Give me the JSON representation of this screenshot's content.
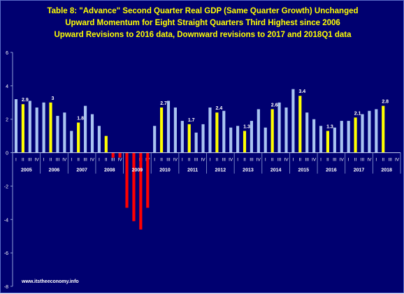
{
  "chart_data": {
    "type": "bar",
    "title_lines": [
      "Table 8: \"Advance\" Second Quarter Real GDP (Same Quarter Growth) Unchanged",
      "Upward Momentum for Eight  Straight Quarters Third Highest since 2006",
      "Upward Revisions to 2016 data, Downward revisions to 2017 and 2018Q1 data"
    ],
    "years": [
      "2005",
      "2006",
      "2007",
      "2008",
      "2009",
      "2010",
      "2011",
      "2012",
      "2013",
      "2014",
      "2015",
      "2016",
      "2017",
      "2018"
    ],
    "quarter_labels": [
      "I",
      "II",
      "III",
      "IV"
    ],
    "values": [
      3.2,
      2.9,
      3.1,
      2.7,
      3.0,
      3.0,
      2.2,
      2.4,
      1.3,
      1.8,
      2.8,
      2.3,
      1.6,
      1.0,
      -0.3,
      -0.3,
      -3.3,
      -4.1,
      -4.6,
      -3.3,
      1.6,
      2.7,
      3.1,
      2.7,
      1.9,
      1.7,
      1.2,
      1.7,
      2.7,
      2.4,
      2.5,
      1.5,
      1.6,
      1.3,
      1.9,
      2.6,
      1.5,
      2.6,
      3.0,
      2.7,
      3.8,
      3.4,
      2.4,
      2.0,
      1.6,
      1.3,
      1.5,
      1.9,
      1.9,
      2.1,
      2.3,
      2.5,
      2.6,
      2.8,
      null,
      null
    ],
    "data_labels": [
      {
        "index": 1,
        "text": "2.9"
      },
      {
        "index": 5,
        "text": "3"
      },
      {
        "index": 9,
        "text": "1.8"
      },
      {
        "index": 21,
        "text": "2.7"
      },
      {
        "index": 25,
        "text": "1.7"
      },
      {
        "index": 29,
        "text": "2.4"
      },
      {
        "index": 33,
        "text": "1.3"
      },
      {
        "index": 37,
        "text": "2.6"
      },
      {
        "index": 41,
        "text": "3.4"
      },
      {
        "index": 45,
        "text": "1.3"
      },
      {
        "index": 49,
        "text": "2.1"
      },
      {
        "index": 53,
        "text": "2.8"
      }
    ],
    "y_ticks": [
      "6",
      "4",
      "2",
      "0",
      "-2",
      "-4",
      "-6",
      "-8"
    ],
    "ylim": [
      -8,
      6
    ],
    "grid": false,
    "colors": {
      "background": "#000070",
      "bar_default": "#a9c4f1",
      "bar_second_quarter": "#ffff00",
      "bar_negative": "#ff0000",
      "title": "#ffff00",
      "axis_text": "#ffffff",
      "year_text": "#ffffff"
    }
  },
  "footer": "www.itstheeconomy.info"
}
